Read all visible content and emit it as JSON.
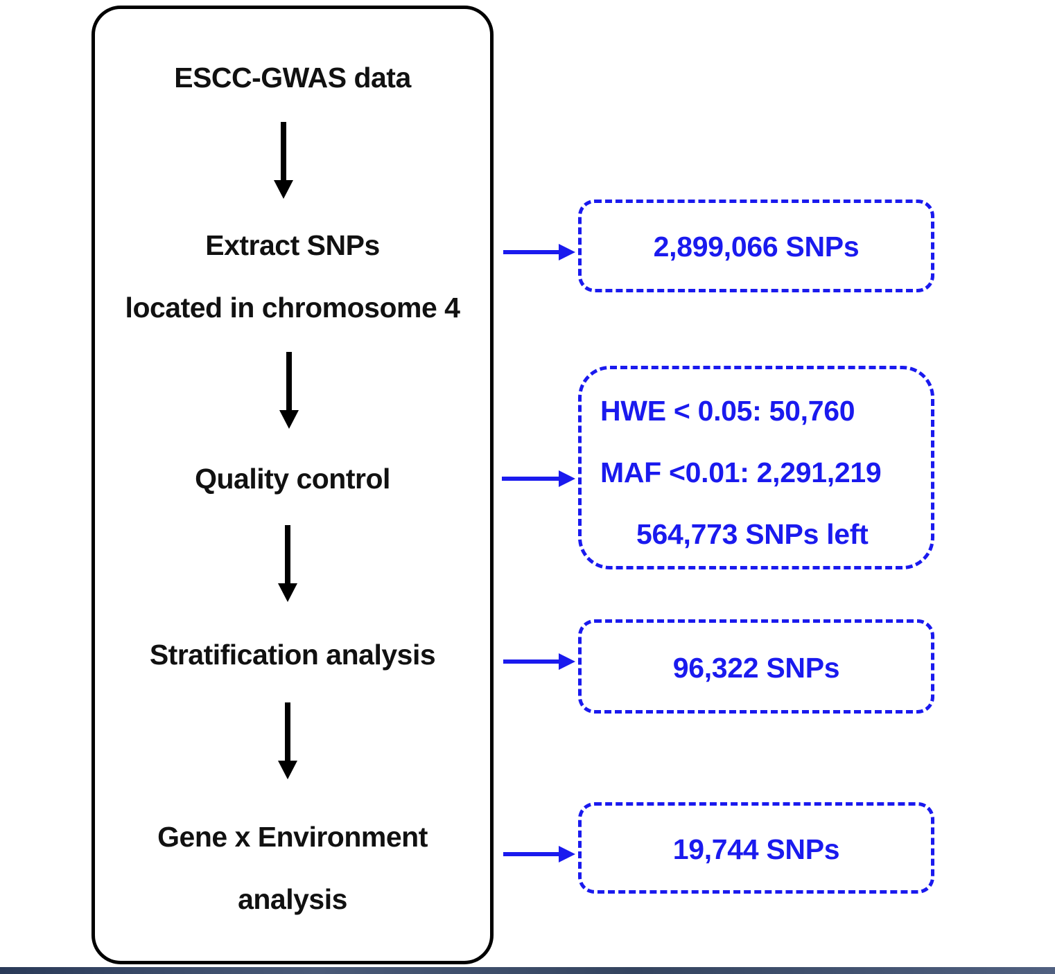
{
  "steps": {
    "step1": "ESCC-GWAS data",
    "step2_line1": "Extract SNPs",
    "step2_line2": "located in chromosome 4",
    "step3": "Quality control",
    "step4": "Stratification analysis",
    "step5_line1": "Gene x Environment",
    "step5_line2": "analysis"
  },
  "results": {
    "extract": "2,899,066 SNPs",
    "qc_hwe": "HWE < 0.05: 50,760",
    "qc_maf": "MAF <0.01: 2,291,219",
    "qc_left": "564,773 SNPs left",
    "stratification": "96,322 SNPs",
    "gxe": "19,744 SNPs"
  },
  "colors": {
    "flow": "#000000",
    "result": "#1a1aee"
  }
}
